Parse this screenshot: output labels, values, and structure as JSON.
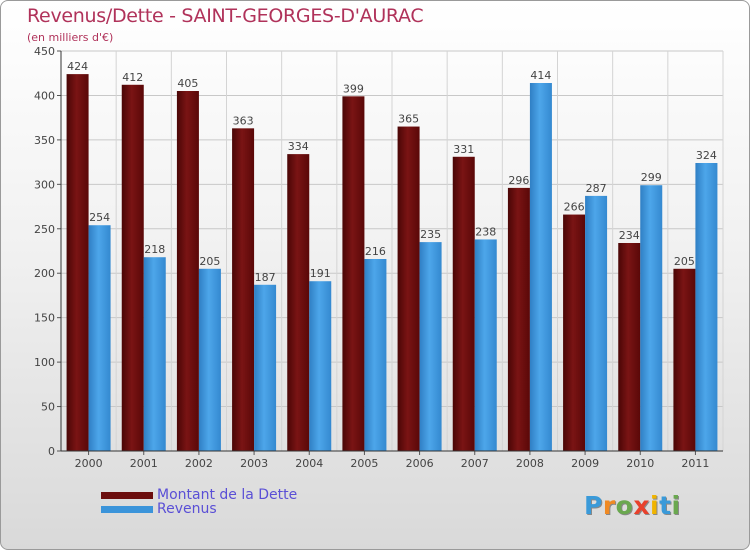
{
  "header": {
    "title": "Revenus/Dette - SAINT-GEORGES-D'AURAC",
    "subtitle": "(en milliers d'€)"
  },
  "legend": {
    "debt_label": "Montant de la Dette",
    "revenue_label": "Revenus"
  },
  "logo": {
    "text": "Proxiti",
    "letters": [
      "P",
      "r",
      "o",
      "x",
      "i",
      "t",
      "i"
    ],
    "colors": [
      "#3a9ad9",
      "#f08a24",
      "#6aa84f",
      "#e8412c",
      "#f0b400",
      "#3a9ad9",
      "#6aa84f"
    ]
  },
  "colors": {
    "debt": "#6b0d0d",
    "revenue": "#3b94da",
    "title": "#b0325a",
    "legend_text": "#5a4fd6"
  },
  "chart_data": {
    "type": "bar",
    "title": "Revenus/Dette - SAINT-GEORGES-D'AURAC",
    "ylabel": "(en milliers d'€)",
    "xlabel": "",
    "ylim": [
      0,
      450
    ],
    "yticks": [
      0,
      50,
      100,
      150,
      200,
      250,
      300,
      350,
      400,
      450
    ],
    "grid": true,
    "legend_position": "bottom-left",
    "categories": [
      "2000",
      "2001",
      "2002",
      "2003",
      "2004",
      "2005",
      "2006",
      "2007",
      "2008",
      "2009",
      "2010",
      "2011"
    ],
    "series": [
      {
        "name": "Montant de la Dette",
        "values": [
          424,
          412,
          405,
          363,
          334,
          399,
          365,
          331,
          296,
          266,
          234,
          205
        ]
      },
      {
        "name": "Revenus",
        "values": [
          254,
          218,
          205,
          187,
          191,
          216,
          235,
          238,
          414,
          287,
          299,
          324
        ]
      }
    ]
  }
}
